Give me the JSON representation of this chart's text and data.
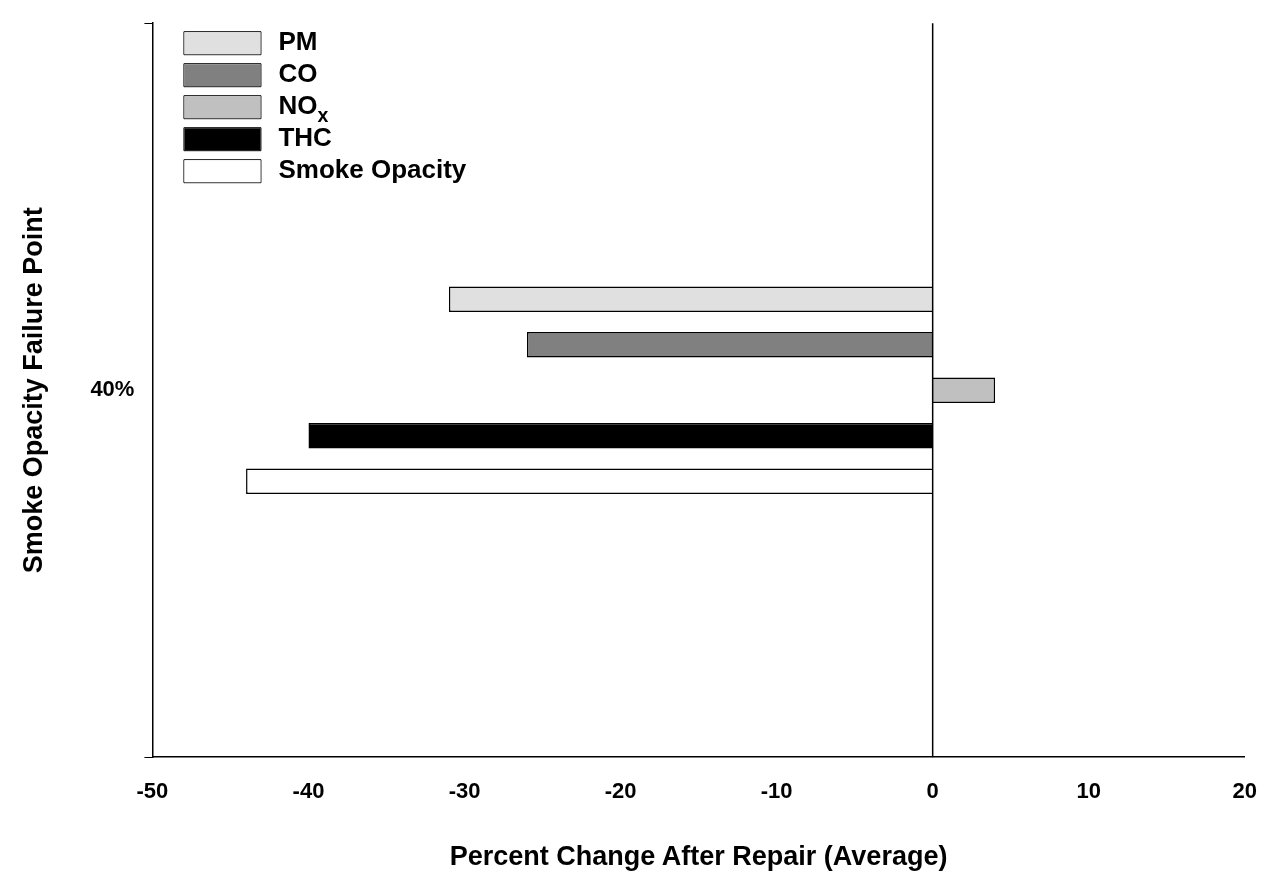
{
  "chart_data": {
    "type": "bar",
    "orientation": "horizontal",
    "xlabel": "Percent Change After Repair (Average)",
    "ylabel": "Smoke Opacity Failure Point",
    "categories": [
      "40%"
    ],
    "series": [
      {
        "name": "PM",
        "color": "#e0e0e0",
        "values": [
          -31
        ]
      },
      {
        "name": "CO",
        "color": "#808080",
        "values": [
          -26
        ]
      },
      {
        "name": "NO$_{x}$",
        "color": "#c0c0c0",
        "values": [
          4
        ]
      },
      {
        "name": "THC",
        "color": "#000000",
        "values": [
          -40
        ]
      },
      {
        "name": "Smoke Opacity",
        "color": "#ffffff",
        "values": [
          -44
        ]
      }
    ],
    "xlim": [
      -50,
      20
    ],
    "xticks": [
      -50,
      -40,
      -30,
      -20,
      -10,
      0,
      10,
      20
    ],
    "ref_lines": [
      {
        "axis": "x",
        "value": 0
      }
    ],
    "grid": false,
    "legend": "top left"
  }
}
